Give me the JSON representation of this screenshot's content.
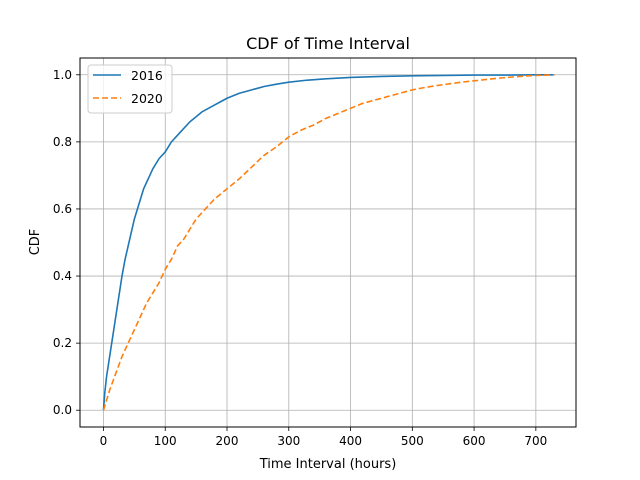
{
  "chart_data": {
    "type": "line",
    "title": "CDF of Time Interval",
    "xlabel": "Time Interval (hours)",
    "ylabel": "CDF",
    "xlim": [
      -38,
      765
    ],
    "ylim": [
      -0.05,
      1.05
    ],
    "xticks": [
      0,
      100,
      200,
      300,
      400,
      500,
      600,
      700
    ],
    "yticks": [
      0.0,
      0.2,
      0.4,
      0.6,
      0.8,
      1.0
    ],
    "xtick_labels": [
      "0",
      "100",
      "200",
      "300",
      "400",
      "500",
      "600",
      "700"
    ],
    "ytick_labels": [
      "0.0",
      "0.2",
      "0.4",
      "0.6",
      "0.8",
      "1.0"
    ],
    "grid": true,
    "legend_position": "top-left",
    "series": [
      {
        "name": "2016",
        "color": "#1f77b4",
        "style": "solid",
        "x": [
          0,
          2,
          5,
          10,
          15,
          20,
          25,
          30,
          35,
          40,
          45,
          50,
          55,
          60,
          65,
          70,
          75,
          80,
          90,
          100,
          110,
          120,
          130,
          140,
          150,
          160,
          170,
          180,
          190,
          200,
          220,
          240,
          260,
          280,
          300,
          330,
          360,
          400,
          450,
          500,
          550,
          600,
          650,
          700,
          730
        ],
        "y": [
          0.0,
          0.05,
          0.1,
          0.16,
          0.22,
          0.28,
          0.34,
          0.4,
          0.45,
          0.49,
          0.53,
          0.57,
          0.6,
          0.63,
          0.66,
          0.68,
          0.7,
          0.72,
          0.75,
          0.77,
          0.8,
          0.82,
          0.84,
          0.86,
          0.875,
          0.89,
          0.9,
          0.91,
          0.92,
          0.93,
          0.945,
          0.955,
          0.965,
          0.972,
          0.978,
          0.984,
          0.988,
          0.992,
          0.995,
          0.997,
          0.998,
          0.999,
          0.999,
          1.0,
          1.0
        ]
      },
      {
        "name": "2020",
        "color": "#ff7f0e",
        "style": "dashed",
        "x": [
          0,
          5,
          10,
          20,
          30,
          40,
          50,
          60,
          70,
          80,
          90,
          100,
          110,
          120,
          130,
          140,
          150,
          160,
          170,
          180,
          190,
          200,
          220,
          240,
          260,
          280,
          300,
          320,
          340,
          360,
          380,
          400,
          420,
          440,
          460,
          480,
          500,
          520,
          540,
          560,
          580,
          600,
          620,
          640,
          660,
          680,
          700,
          730
        ],
        "y": [
          0.0,
          0.03,
          0.06,
          0.11,
          0.16,
          0.2,
          0.24,
          0.28,
          0.32,
          0.35,
          0.38,
          0.42,
          0.45,
          0.49,
          0.51,
          0.54,
          0.57,
          0.59,
          0.61,
          0.63,
          0.645,
          0.66,
          0.69,
          0.725,
          0.76,
          0.785,
          0.815,
          0.835,
          0.85,
          0.87,
          0.885,
          0.9,
          0.915,
          0.925,
          0.935,
          0.945,
          0.955,
          0.962,
          0.968,
          0.973,
          0.978,
          0.982,
          0.986,
          0.99,
          0.993,
          0.996,
          0.998,
          1.0
        ]
      }
    ]
  }
}
